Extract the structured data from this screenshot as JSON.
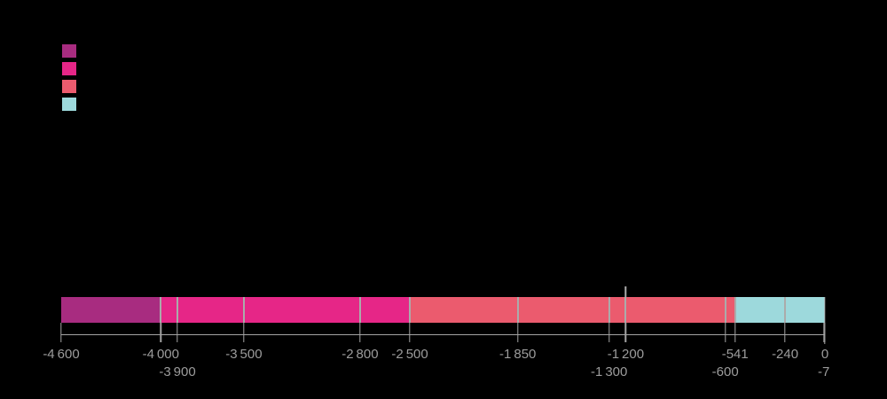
{
  "figure": {
    "background_color": "#000000"
  },
  "legend": {
    "swatches": [
      {
        "name": "legend-swatch-1",
        "color": "#A82C80"
      },
      {
        "name": "legend-swatch-2",
        "color": "#E62687"
      },
      {
        "name": "legend-swatch-3",
        "color": "#EB5B6E"
      },
      {
        "name": "legend-swatch-4",
        "color": "#9DD9DC"
      }
    ]
  },
  "chart_data": {
    "type": "bar",
    "subtype": "timeline",
    "orientation": "horizontal",
    "xlim": [
      -4600,
      0
    ],
    "grid": false,
    "legend_position": "top-left",
    "segments": [
      {
        "start": -4600,
        "end": -4000,
        "color": "#A82C80"
      },
      {
        "start": -4000,
        "end": -2500,
        "color": "#E62687"
      },
      {
        "start": -2500,
        "end": -541,
        "color": "#EB5B6E"
      },
      {
        "start": -541,
        "end": 0,
        "color": "#9DD9DC"
      }
    ],
    "dividers": [
      -4000,
      -3900,
      -3500,
      -2800,
      -2500,
      -1850,
      -1300,
      -1200,
      -600,
      -541,
      -240
    ],
    "ticks": [
      {
        "value": -4600,
        "label": "-4 600",
        "row": 1
      },
      {
        "value": -4000,
        "label": "-4 000",
        "row": 1
      },
      {
        "value": -3900,
        "label": "-3 900",
        "row": 2
      },
      {
        "value": -3500,
        "label": "-3 500",
        "row": 1
      },
      {
        "value": -2800,
        "label": "-2 800",
        "row": 1
      },
      {
        "value": -2500,
        "label": "-2 500",
        "row": 1
      },
      {
        "value": -1850,
        "label": "-1 850",
        "row": 1
      },
      {
        "value": -1300,
        "label": "-1 300",
        "row": 2
      },
      {
        "value": -1200,
        "label": "-1 200",
        "row": 1
      },
      {
        "value": -600,
        "label": "-600",
        "row": 2
      },
      {
        "value": -541,
        "label": "-541",
        "row": 1
      },
      {
        "value": -240,
        "label": "-240",
        "row": 1
      },
      {
        "value": -7,
        "label": "-7",
        "row": 2
      },
      {
        "value": 0,
        "label": "0",
        "row": 1
      }
    ],
    "annotations": [
      {
        "x": -1200,
        "style": "leader-above-bar"
      },
      {
        "x": 0,
        "style": "leader-through-bar"
      }
    ],
    "colors": {
      "divider": "#ABABAB",
      "axis": "#A4A4A4",
      "tick_label": "#9C9C9C"
    }
  }
}
